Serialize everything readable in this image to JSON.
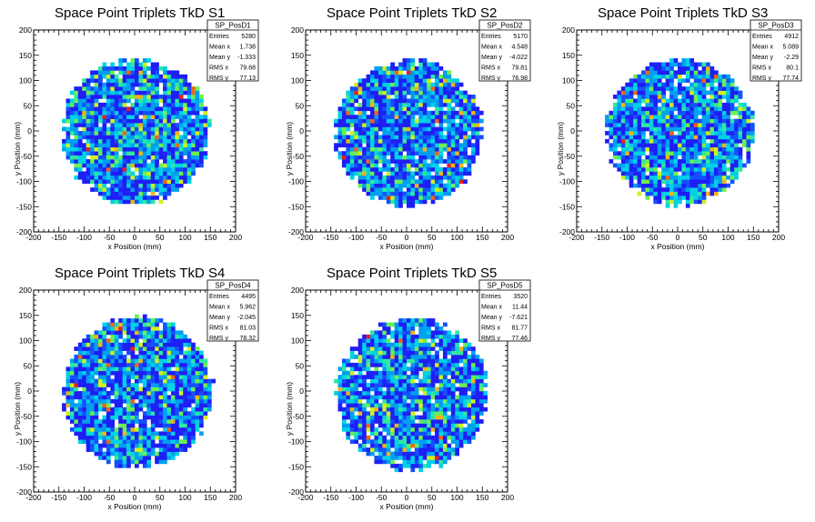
{
  "axis": {
    "xlabel": "x Position (mm)",
    "ylabel": "y Position (mm)",
    "xlim": [
      -200,
      200
    ],
    "ylim": [
      -200,
      200
    ],
    "xticks": [
      -200,
      -150,
      -100,
      -50,
      0,
      50,
      100,
      150,
      200
    ],
    "yticks": [
      -200,
      -150,
      -100,
      -50,
      0,
      50,
      100,
      150,
      200
    ],
    "bin_width_mm": 8
  },
  "palette": [
    "#1e1ef5",
    "#1450ff",
    "#00a0f0",
    "#00d2e6",
    "#30e8a0",
    "#6cf050",
    "#d2f01e",
    "#f0b414",
    "#f06414",
    "#e61e1e"
  ],
  "stats_labels": [
    "Entries",
    "Mean x",
    "Mean y",
    "RMS x",
    "RMS y"
  ],
  "chart_data": [
    {
      "type": "heatmap",
      "title": "Space Point Triplets TkD S1",
      "histogram_name": "SP_PosD1",
      "stats": [
        "5280",
        "1.738",
        "-1.333",
        "79.68",
        "77.13"
      ],
      "footprint": {
        "center": [
          2,
          -1
        ],
        "radius_mm": 145,
        "shape": "disc"
      },
      "xlabel": "x Position (mm)",
      "ylabel": "y Position (mm)",
      "xlim": [
        -200,
        200
      ],
      "ylim": [
        -200,
        200
      ],
      "grid": false,
      "legend": "top-right"
    },
    {
      "type": "heatmap",
      "title": "Space Point Triplets TkD S2",
      "histogram_name": "SP_PosD2",
      "stats": [
        "5170",
        "4.548",
        "-4.022",
        "79.81",
        "76.98"
      ],
      "footprint": {
        "center": [
          4,
          -4
        ],
        "radius_mm": 145,
        "shape": "disc"
      },
      "xlabel": "x Position (mm)",
      "ylabel": "y Position (mm)",
      "xlim": [
        -200,
        200
      ],
      "ylim": [
        -200,
        200
      ],
      "grid": false,
      "legend": "top-right"
    },
    {
      "type": "heatmap",
      "title": "Space Point Triplets TkD S3",
      "histogram_name": "SP_PosD3",
      "stats": [
        "4912",
        "5.089",
        "-2.29",
        "80.1",
        "77.74"
      ],
      "footprint": {
        "center": [
          5,
          -2
        ],
        "radius_mm": 145,
        "shape": "disc"
      },
      "xlabel": "x Position (mm)",
      "ylabel": "y Position (mm)",
      "xlim": [
        -200,
        200
      ],
      "ylim": [
        -200,
        200
      ],
      "grid": false,
      "legend": "top-right"
    },
    {
      "type": "heatmap",
      "title": "Space Point Triplets TkD S4",
      "histogram_name": "SP_PosD4",
      "stats": [
        "4495",
        "5.962",
        "-2.045",
        "81.03",
        "78.32"
      ],
      "footprint": {
        "center": [
          6,
          -2
        ],
        "radius_mm": 148,
        "shape": "disc"
      },
      "xlabel": "x Position (mm)",
      "ylabel": "y Position (mm)",
      "xlim": [
        -200,
        200
      ],
      "ylim": [
        -200,
        200
      ],
      "grid": false,
      "legend": "top-right"
    },
    {
      "type": "heatmap",
      "title": "Space Point Triplets TkD S5",
      "histogram_name": "SP_PosD5",
      "stats": [
        "3520",
        "11.44",
        "-7.621",
        "81.77",
        "77.46"
      ],
      "footprint": {
        "center": [
          10,
          -6
        ],
        "radius_mm": 150,
        "shape": "disc"
      },
      "xlabel": "x Position (mm)",
      "ylabel": "y Position (mm)",
      "xlim": [
        -200,
        200
      ],
      "ylim": [
        -200,
        200
      ],
      "grid": false,
      "legend": "top-right"
    }
  ]
}
